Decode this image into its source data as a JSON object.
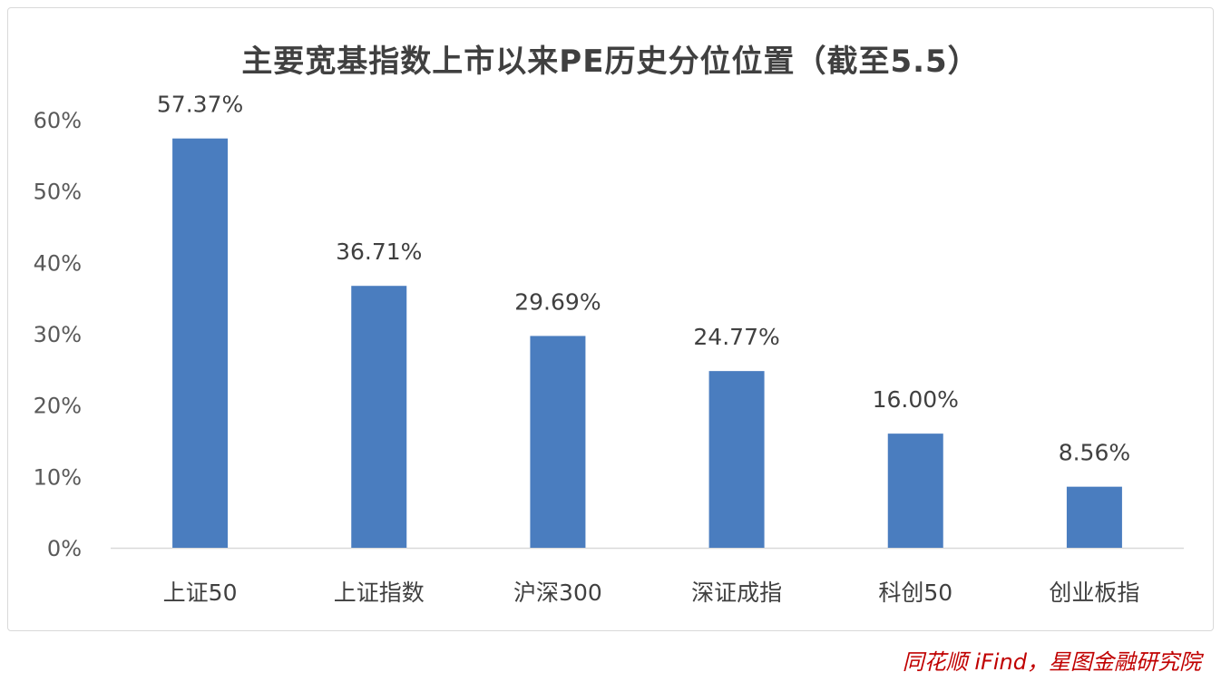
{
  "chart_data": {
    "type": "bar",
    "title": "主要宽基指数上市以来PE历史分位位置（截至5.5）",
    "categories": [
      "上证50",
      "上证指数",
      "沪深300",
      "深证成指",
      "科创50",
      "创业板指"
    ],
    "values": [
      57.37,
      36.71,
      29.69,
      24.77,
      16.0,
      8.56
    ],
    "data_labels": [
      "57.37%",
      "36.71%",
      "29.69%",
      "24.77%",
      "16.00%",
      "8.56%"
    ],
    "y_ticks": [
      "0%",
      "10%",
      "20%",
      "30%",
      "40%",
      "50%",
      "60%"
    ],
    "ylim": [
      0,
      60
    ],
    "grid": false,
    "legend": "none",
    "bar_color": "#4a7dbf",
    "xlabel": "",
    "ylabel": ""
  },
  "source": "同花顺 iFind，星图金融研究院"
}
